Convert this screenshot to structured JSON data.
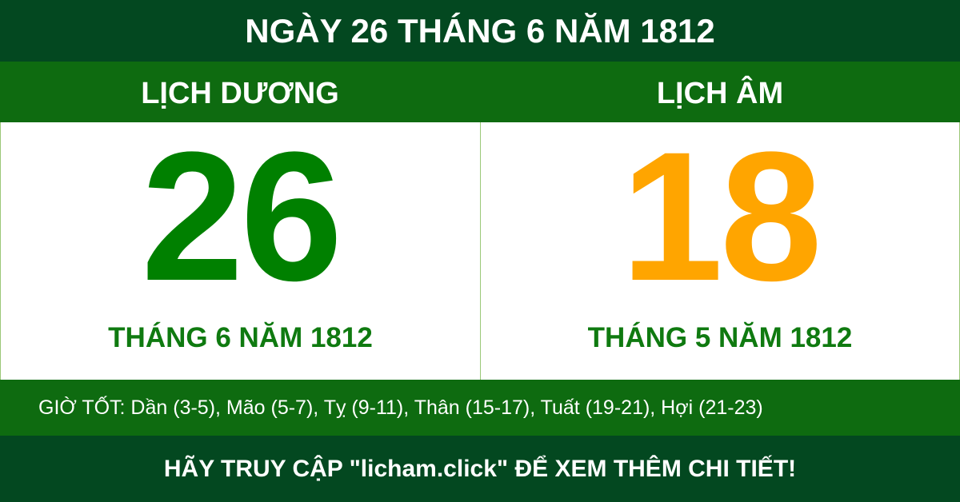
{
  "title": "NGÀY 26 THÁNG 6 NĂM 1812",
  "solar": {
    "label": "LỊCH DƯƠNG",
    "day": "26",
    "month_year": "THÁNG 6 NĂM 1812",
    "color": "#008000"
  },
  "lunar": {
    "label": "LỊCH ÂM",
    "day": "18",
    "month_year": "THÁNG 5 NĂM 1812",
    "color": "#ffa500"
  },
  "good_hours": "GIỜ TỐT: Dần (3-5), Mão (5-7), Tỵ (9-11), Thân (15-17), Tuất (19-21), Hợi (21-23)",
  "footer": "HÃY TRUY CẬP \"licham.click\" ĐỂ XEM THÊM CHI TIẾT!"
}
